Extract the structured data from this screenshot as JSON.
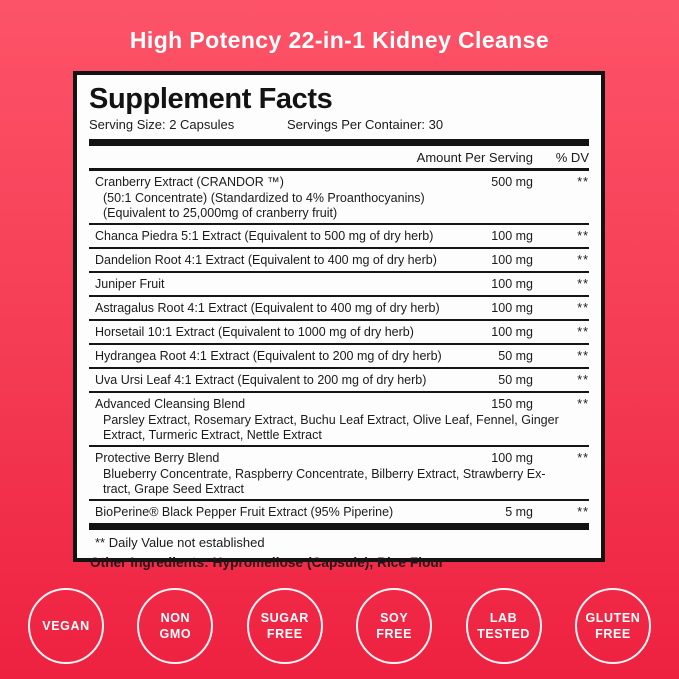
{
  "title": "High Potency 22-in-1 Kidney Cleanse",
  "panel": {
    "heading": "Supplement Facts",
    "serving_size": "Serving Size: 2 Capsules",
    "servings_per_container": "Servings Per Container: 30",
    "col_amount": "Amount Per Serving",
    "col_dv": "% DV",
    "rows": [
      {
        "name": "Cranberry Extract (CRANDOR ™)",
        "sub": [
          "(50:1 Concentrate) (Standardized to 4% Proanthocyanins)",
          "(Equivalent to 25,000mg of cranberry fruit)"
        ],
        "amount": "500 mg",
        "dv": "**"
      },
      {
        "name": "Chanca Piedra 5:1 Extract (Equivalent to 500 mg of dry herb)",
        "sub": [],
        "amount": "100 mg",
        "dv": "**"
      },
      {
        "name": "Dandelion Root 4:1 Extract (Equivalent to 400 mg of dry herb)",
        "sub": [],
        "amount": "100 mg",
        "dv": "**"
      },
      {
        "name": "Juniper Fruit",
        "sub": [],
        "amount": "100 mg",
        "dv": "**"
      },
      {
        "name": "Astragalus Root 4:1 Extract (Equivalent to 400 mg of dry herb)",
        "sub": [],
        "amount": "100 mg",
        "dv": "**"
      },
      {
        "name": "Horsetail 10:1 Extract (Equivalent to 1000 mg of dry herb)",
        "sub": [],
        "amount": "100 mg",
        "dv": "**"
      },
      {
        "name": "Hydrangea Root 4:1 Extract (Equivalent to 200 mg of dry herb)",
        "sub": [],
        "amount": "50 mg",
        "dv": "**"
      },
      {
        "name": "Uva Ursi Leaf 4:1 Extract (Equivalent to 200 mg of dry herb)",
        "sub": [],
        "amount": "50 mg",
        "dv": "**"
      },
      {
        "name": "Advanced Cleansing Blend",
        "sub": [
          "Parsley Extract, Rosemary Extract, Buchu Leaf Extract, Olive Leaf, Fennel, Ginger",
          "Extract, Turmeric Extract, Nettle Extract"
        ],
        "amount": "150 mg",
        "dv": "**"
      },
      {
        "name": "Protective Berry Blend",
        "sub": [
          "Blueberry Concentrate, Raspberry Concentrate, Bilberry Extract, Strawberry Ex-",
          "tract, Grape Seed Extract"
        ],
        "amount": "100 mg",
        "dv": "**"
      },
      {
        "name": "BioPerine® Black Pepper Fruit Extract (95% Piperine)",
        "sub": [],
        "amount": "5 mg",
        "dv": "**"
      }
    ],
    "footnote": "** Daily Value not established"
  },
  "other_ingredients": "Other Ingredients: Hypromellose (Capsule), Rice Flour",
  "badges": [
    {
      "slug": "vegan",
      "lines": [
        "VEGAN"
      ]
    },
    {
      "slug": "non-gmo",
      "lines": [
        "NON",
        "GMO"
      ]
    },
    {
      "slug": "sugar-free",
      "lines": [
        "SUGAR",
        "FREE"
      ]
    },
    {
      "slug": "soy-free",
      "lines": [
        "SOY",
        "FREE"
      ]
    },
    {
      "slug": "lab-tested",
      "lines": [
        "LAB",
        "TESTED"
      ]
    },
    {
      "slug": "gluten-free",
      "lines": [
        "GLUTEN",
        "FREE"
      ]
    }
  ],
  "colors": {
    "bg_top": "#FD5368",
    "bg_bottom": "#EE2140",
    "panel_bg": "#FDFDFD",
    "panel_border": "#131313",
    "title_text": "#FFFFFF",
    "badge_ring": "#FFFFFF"
  }
}
